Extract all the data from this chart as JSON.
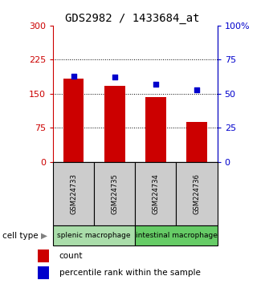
{
  "title": "GDS2982 / 1433684_at",
  "samples": [
    "GSM224733",
    "GSM224735",
    "GSM224734",
    "GSM224736"
  ],
  "bar_values": [
    183,
    168,
    143,
    88
  ],
  "percentile_values": [
    63,
    62,
    57,
    53
  ],
  "bar_color": "#cc0000",
  "dot_color": "#0000cc",
  "ylim_left": [
    0,
    300
  ],
  "ylim_right": [
    0,
    100
  ],
  "yticks_left": [
    0,
    75,
    150,
    225,
    300
  ],
  "yticks_right": [
    0,
    25,
    50,
    75,
    100
  ],
  "ytick_labels_right": [
    "0",
    "25",
    "50",
    "75",
    "100%"
  ],
  "grid_values": [
    75,
    150,
    225
  ],
  "cell_types": [
    {
      "label": "splenic macrophage",
      "color": "#aaddaa",
      "span": [
        0,
        2
      ]
    },
    {
      "label": "intestinal macrophage",
      "color": "#66cc66",
      "span": [
        2,
        4
      ]
    }
  ],
  "cell_type_label": "cell type",
  "legend_count_label": "count",
  "legend_pct_label": "percentile rank within the sample",
  "bar_width": 0.5,
  "sample_box_color": "#cccccc",
  "title_fontsize": 10,
  "tick_fontsize": 8,
  "left_axis_color": "#cc0000",
  "right_axis_color": "#0000cc"
}
